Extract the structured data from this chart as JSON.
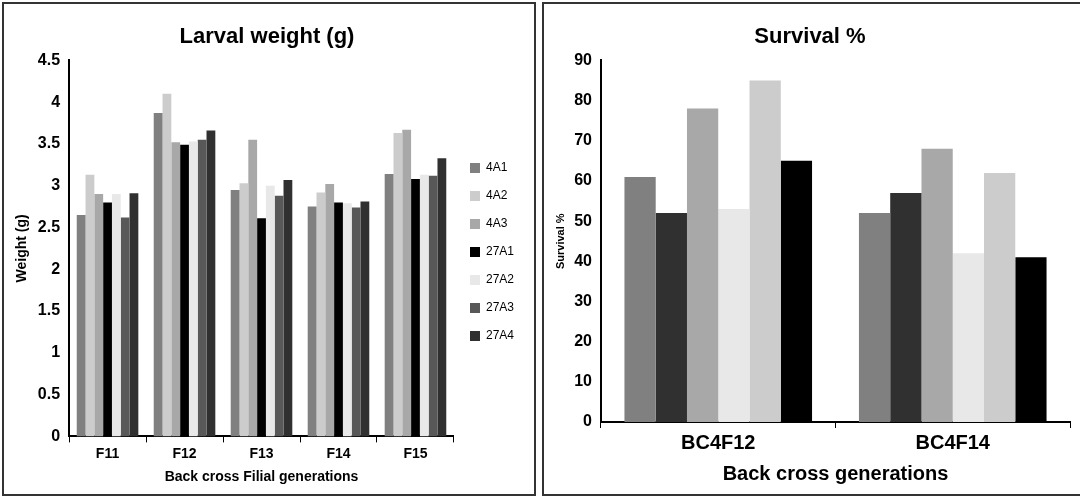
{
  "chart_data": [
    {
      "type": "bar",
      "title": "Larval weight (g)",
      "xlabel": "Back cross Filial generations",
      "ylabel": "Weight (g)",
      "categories": [
        "F11",
        "F12",
        "F13",
        "F14",
        "F15"
      ],
      "ylim": [
        0,
        4.5
      ],
      "yticks": [
        0,
        0.5,
        1,
        1.5,
        2,
        2.5,
        3,
        3.5,
        4,
        4.5
      ],
      "grid": false,
      "legend": "right",
      "series": [
        {
          "name": "4A1",
          "color": "#808080",
          "values": [
            2.65,
            3.87,
            2.95,
            2.75,
            3.14
          ]
        },
        {
          "name": "4A2",
          "color": "#cccccc",
          "values": [
            3.13,
            4.1,
            3.03,
            2.92,
            3.63
          ]
        },
        {
          "name": "4A3",
          "color": "#a8a8a8",
          "values": [
            2.9,
            3.52,
            3.55,
            3.02,
            3.67
          ]
        },
        {
          "name": "27A1",
          "color": "#000000",
          "values": [
            2.8,
            3.49,
            2.61,
            2.8,
            3.08
          ]
        },
        {
          "name": "27A2",
          "color": "#e8e8e8",
          "values": [
            2.9,
            3.53,
            3.0,
            2.79,
            3.13
          ]
        },
        {
          "name": "27A3",
          "color": "#585858",
          "values": [
            2.62,
            3.55,
            2.88,
            2.74,
            3.12
          ]
        },
        {
          "name": "27A4",
          "color": "#303030",
          "values": [
            2.91,
            3.66,
            3.07,
            2.81,
            3.33
          ]
        }
      ]
    },
    {
      "type": "bar",
      "title": "Survival %",
      "xlabel": "Back cross generations",
      "ylabel": "Survival %",
      "categories": [
        "BC4F12",
        "BC4F14"
      ],
      "ylim": [
        0,
        90
      ],
      "yticks": [
        0,
        10,
        20,
        30,
        40,
        50,
        60,
        70,
        80,
        90
      ],
      "grid": false,
      "legend": false,
      "series": [
        {
          "color": "#808080",
          "values": [
            61,
            52
          ]
        },
        {
          "color": "#303030",
          "values": [
            52,
            57
          ]
        },
        {
          "color": "#a8a8a8",
          "values": [
            78,
            68
          ]
        },
        {
          "color": "#e8e8e8",
          "values": [
            53,
            42
          ]
        },
        {
          "color": "#cccccc",
          "values": [
            85,
            62
          ]
        },
        {
          "color": "#000000",
          "values": [
            65,
            41
          ]
        }
      ]
    }
  ]
}
